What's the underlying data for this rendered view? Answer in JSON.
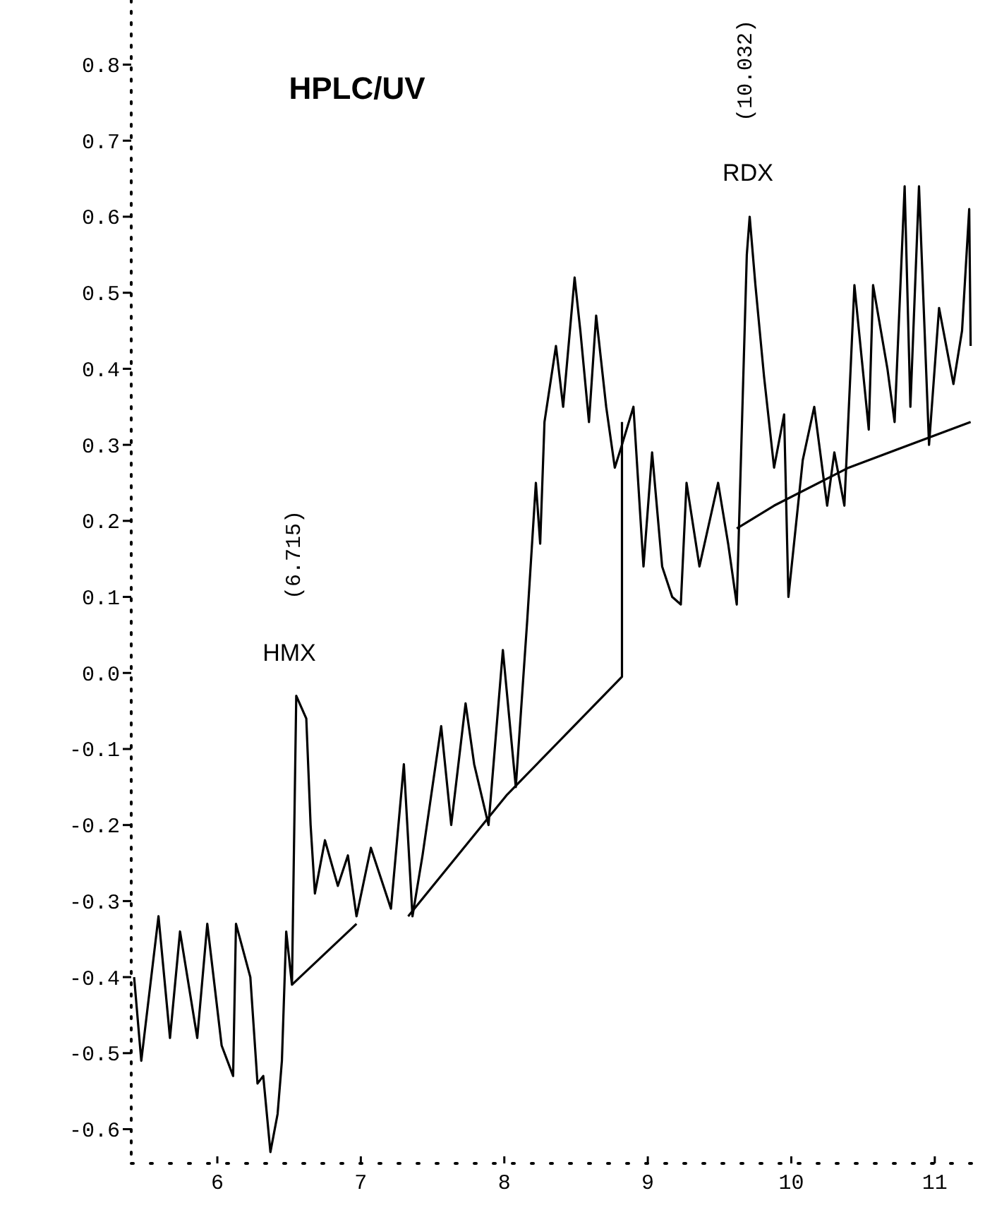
{
  "chart_data": {
    "type": "line",
    "title": "HPLC/UV",
    "xlim": [
      5.4,
      11.35
    ],
    "ylim": [
      -0.645,
      0.885
    ],
    "xticks": [
      6,
      7,
      8,
      9,
      10,
      11
    ],
    "yticks": [
      -0.6,
      -0.5,
      -0.4,
      -0.3,
      -0.2,
      -0.1,
      {
        "value": 0,
        "label": "0.0"
      },
      0.1,
      0.2,
      0.3,
      0.4,
      0.5,
      0.6,
      0.7,
      0.8
    ],
    "grid": false,
    "marker": "none",
    "line_style": "solid",
    "annotations": [
      "HMX",
      "(6.715)",
      "RDX",
      "(10.032)"
    ],
    "series": [
      {
        "color": "#000000",
        "x": [
          5.42,
          5.47,
          5.59,
          5.67,
          5.74,
          5.86,
          5.93,
          6.03,
          6.11,
          6.13,
          6.23,
          6.28,
          6.32,
          6.37,
          6.42,
          6.45,
          6.48,
          6.52,
          6.55,
          6.62,
          6.65,
          6.68,
          6.75,
          6.84,
          6.91,
          6.97,
          7.07,
          7.21,
          7.3,
          7.36,
          7.43,
          7.56,
          7.63,
          7.73,
          7.79,
          7.89,
          7.99,
          8.08,
          8.16,
          8.22,
          8.25,
          8.28,
          8.36,
          8.41,
          8.49,
          8.53,
          8.59,
          8.64,
          8.71,
          8.77,
          8.82,
          8.9,
          8.97,
          9.03,
          9.1,
          9.17,
          9.23,
          9.27,
          9.36,
          9.49,
          9.56,
          9.62,
          9.69,
          9.71,
          9.75,
          9.81,
          9.88,
          9.95,
          9.98,
          10.08,
          10.16,
          10.25,
          10.3,
          10.37,
          10.44,
          10.54,
          10.57,
          10.67,
          10.72,
          10.79,
          10.83,
          10.89,
          10.96,
          11.03,
          11.13,
          11.19,
          11.24,
          11.25
        ],
        "values": [
          -0.4,
          -0.51,
          -0.32,
          -0.48,
          -0.34,
          -0.48,
          -0.33,
          -0.49,
          -0.53,
          -0.33,
          -0.4,
          -0.54,
          -0.53,
          -0.63,
          -0.58,
          -0.51,
          -0.34,
          -0.41,
          -0.03,
          -0.06,
          -0.2,
          -0.29,
          -0.22,
          -0.28,
          -0.24,
          -0.32,
          -0.23,
          -0.31,
          -0.12,
          -0.32,
          -0.24,
          -0.07,
          -0.2,
          -0.04,
          -0.12,
          -0.2,
          0.03,
          -0.15,
          0.07,
          0.25,
          0.17,
          0.33,
          0.43,
          0.35,
          0.52,
          0.45,
          0.33,
          0.47,
          0.35,
          0.27,
          0.3,
          0.35,
          0.14,
          0.29,
          0.14,
          0.1,
          0.09,
          0.25,
          0.14,
          0.25,
          0.17,
          0.09,
          0.55,
          0.6,
          0.51,
          0.39,
          0.27,
          0.34,
          0.1,
          0.28,
          0.35,
          0.22,
          0.29,
          0.22,
          0.51,
          0.32,
          0.51,
          0.4,
          0.33,
          0.64,
          0.35,
          0.64,
          0.3,
          0.48,
          0.38,
          0.45,
          0.61,
          0.43
        ]
      },
      {
        "color": "#000000",
        "x": [
          6.52,
          6.97
        ],
        "values": [
          -0.41,
          -0.33
        ]
      },
      {
        "color": "#000000",
        "x": [
          7.33,
          8.02,
          8.82,
          8.82
        ],
        "values": [
          -0.32,
          -0.16,
          -0.005,
          0.33
        ]
      },
      {
        "color": "#000000",
        "x": [
          9.62,
          9.88,
          10.4,
          11.25
        ],
        "values": [
          0.19,
          0.22,
          0.27,
          0.33
        ]
      }
    ]
  }
}
